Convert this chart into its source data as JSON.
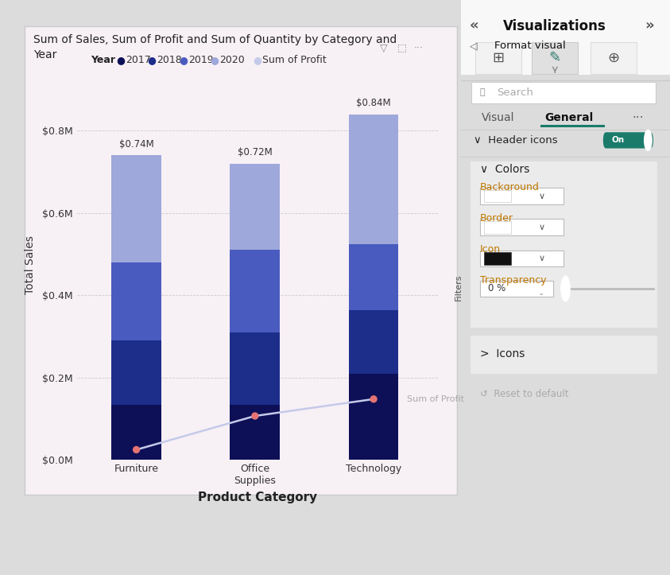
{
  "title": "Sum of Sales, Sum of Profit and Sum of Quantity by Category and\nYear",
  "xlabel": "Product Category",
  "ylabel": "Total Sales",
  "categories": [
    "Furniture",
    "Office\nSupplies",
    "Technology"
  ],
  "categories_x": [
    "Furniture",
    "Office Supplies",
    "Technology"
  ],
  "bar_totals": [
    "$0.74M",
    "$0.72M",
    "$0.84M"
  ],
  "years": [
    "2017",
    "2018",
    "2019",
    "2020"
  ],
  "bar_colors": [
    "#0d1057",
    "#1c2d8a",
    "#4a5bbf",
    "#9fa8da"
  ],
  "legend_dot_colors": [
    "#0d1057",
    "#1c2d8a",
    "#4a5bbf",
    "#9fa8da",
    "#c5cae9"
  ],
  "stacked_values": {
    "Furniture": [
      0.135,
      0.155,
      0.19,
      0.26
    ],
    "Office Supplies": [
      0.135,
      0.175,
      0.2,
      0.21
    ],
    "Technology": [
      0.21,
      0.155,
      0.16,
      0.315
    ]
  },
  "profit_values": [
    0.025,
    0.107,
    0.148
  ],
  "profit_line_color": "#c5cae9",
  "profit_dot_color": "#e57373",
  "sum_of_profit_label": "Sum of Profit",
  "panel_bg_color": "#f7f0f5",
  "ylim": [
    0,
    0.95
  ],
  "yticks": [
    0.0,
    0.2,
    0.4,
    0.6,
    0.8
  ],
  "ytick_labels": [
    "$0.0M",
    "$0.2M",
    "$0.4M",
    "$0.6M",
    "$0.8M"
  ],
  "on_color": "#1a7b6b",
  "orange_label": "#c07800",
  "right_bg": "#f2f2f2",
  "colors_box_bg": "#ebebeb",
  "icons_box_bg": "#ebebeb"
}
